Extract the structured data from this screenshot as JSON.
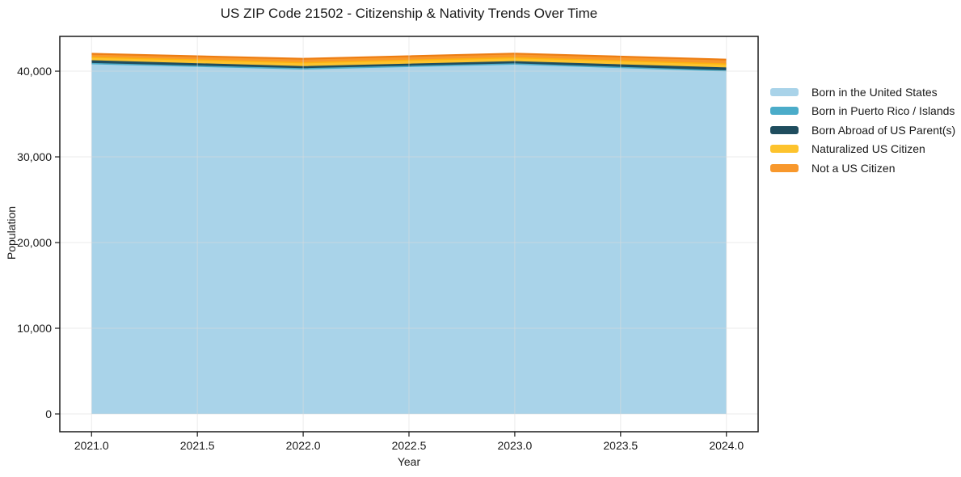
{
  "chart_data": {
    "type": "area",
    "stacked": true,
    "title": "US ZIP Code 21502 - Citizenship & Nativity Trends Over Time",
    "xlabel": "Year",
    "ylabel": "Population",
    "x": [
      2021,
      2022,
      2023,
      2024
    ],
    "series": [
      {
        "name": "Born in the United States",
        "fill": "#a9d3e9",
        "edge": "#a9d3e9",
        "values": [
          40800,
          40200,
          40750,
          39950
        ]
      },
      {
        "name": "Born in Puerto Rico / Islands",
        "fill": "#4bacc9",
        "edge": "#4bacc9",
        "values": [
          80,
          80,
          80,
          80
        ]
      },
      {
        "name": "Born Abroad of US Parent(s)",
        "fill": "#1f4d5e",
        "edge": "#1f4d5e",
        "values": [
          320,
          230,
          270,
          330
        ]
      },
      {
        "name": "Naturalized US Citizen",
        "fill": "#fdc32d",
        "edge": "#fdb211",
        "values": [
          430,
          470,
          470,
          470
        ]
      },
      {
        "name": "Not a US Citizen",
        "fill": "#f8982c",
        "edge": "#ed7d12",
        "values": [
          400,
          470,
          480,
          520
        ]
      }
    ],
    "xlim": [
      2020.85,
      2024.15
    ],
    "ylim": [
      -2075,
      44060
    ],
    "x_ticks": [
      {
        "v": 2021.0,
        "label": "2021.0"
      },
      {
        "v": 2021.5,
        "label": "2021.5"
      },
      {
        "v": 2022.0,
        "label": "2022.0"
      },
      {
        "v": 2022.5,
        "label": "2022.5"
      },
      {
        "v": 2023.0,
        "label": "2023.0"
      },
      {
        "v": 2023.5,
        "label": "2023.5"
      },
      {
        "v": 2024.0,
        "label": "2024.0"
      }
    ],
    "y_ticks": [
      {
        "v": 0,
        "label": "0"
      },
      {
        "v": 10000,
        "label": "10,000"
      },
      {
        "v": 20000,
        "label": "20,000"
      },
      {
        "v": 30000,
        "label": "30,000"
      },
      {
        "v": 40000,
        "label": "40,000"
      }
    ],
    "grid": true,
    "legend_position": "right"
  },
  "colors": {
    "background": "#ffffff",
    "grid": "#dcdcdc",
    "spine": "#1a1a1a",
    "tick_text": "#1a1a1a"
  }
}
